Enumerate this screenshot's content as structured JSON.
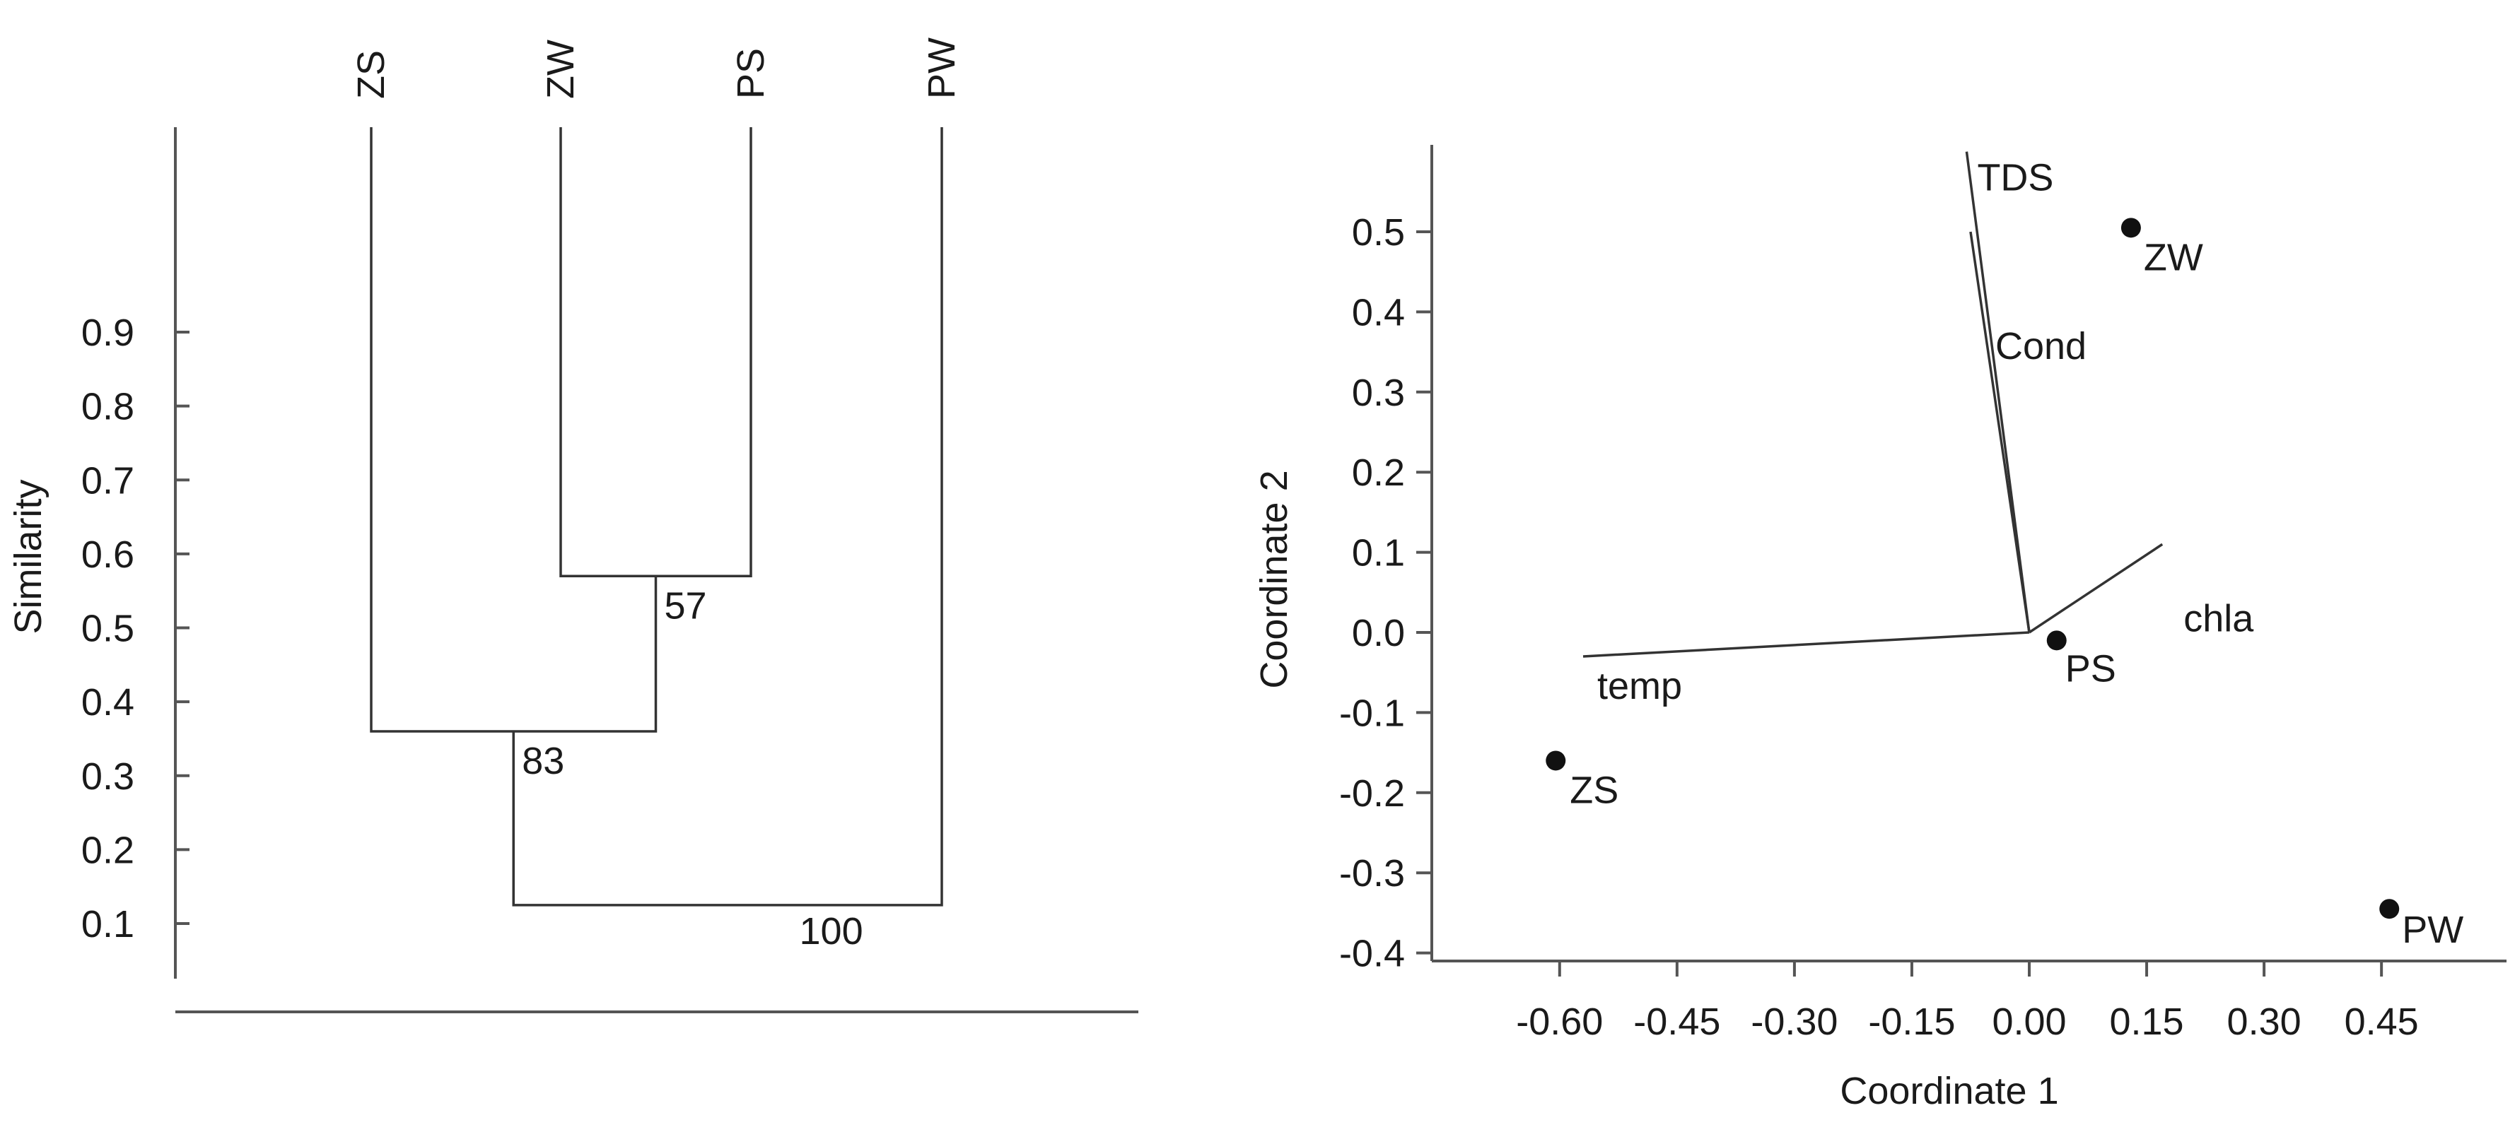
{
  "chart_data": [
    {
      "type": "dendrogram",
      "ylabel": "Similarity",
      "ylim": [
        0.05,
        1.0
      ],
      "yticks": [
        0.1,
        0.2,
        0.3,
        0.4,
        0.5,
        0.6,
        0.7,
        0.8,
        0.9
      ],
      "ytick_labels": [
        "0.1",
        "0.2",
        "0.3",
        "0.4",
        "0.5",
        "0.6",
        "0.7",
        "0.8",
        "0.9"
      ],
      "leaves": [
        "ZS",
        "ZW",
        "PS",
        "PW"
      ],
      "merges": [
        {
          "left": "ZW",
          "right": "PS",
          "similarity": 0.57,
          "label": "57"
        },
        {
          "left": "ZS",
          "right": "ZW+PS",
          "similarity": 0.36,
          "label": "83"
        },
        {
          "left": "ZS+ZW+PS",
          "right": "PW",
          "similarity": 0.125,
          "label": "100"
        }
      ]
    },
    {
      "type": "scatter",
      "xlabel": "Coordinate 1",
      "ylabel": "Coordinate 2",
      "xlim": [
        -0.69,
        0.5
      ],
      "ylim": [
        -0.4,
        0.6
      ],
      "xticks": [
        -0.6,
        -0.45,
        -0.3,
        -0.15,
        0.0,
        0.15,
        0.3,
        0.45
      ],
      "xtick_labels": [
        "-0.60",
        "-0.45",
        "-0.30",
        "-0.15",
        "0.00",
        "0.15",
        "0.30",
        "0.45"
      ],
      "yticks": [
        -0.4,
        -0.3,
        -0.2,
        -0.1,
        0.0,
        0.1,
        0.2,
        0.3,
        0.4,
        0.5
      ],
      "ytick_labels": [
        "-0.4",
        "-0.3",
        "-0.2",
        "-0.1",
        "0.0",
        "0.1",
        "0.2",
        "0.3",
        "0.4",
        "0.5"
      ],
      "points": [
        {
          "label": "ZW",
          "x": 0.13,
          "y": 0.505
        },
        {
          "label": "PS",
          "x": 0.035,
          "y": -0.01
        },
        {
          "label": "ZS",
          "x": -0.605,
          "y": -0.16
        },
        {
          "label": "PW",
          "x": 0.46,
          "y": -0.345
        }
      ],
      "vectors": [
        {
          "label": "TDS",
          "x": -0.08,
          "y": 0.6
        },
        {
          "label": "Cond",
          "x": -0.075,
          "y": 0.5
        },
        {
          "label": "chla",
          "x": 0.17,
          "y": 0.11
        },
        {
          "label": "temp",
          "x": -0.57,
          "y": -0.03
        }
      ]
    }
  ]
}
